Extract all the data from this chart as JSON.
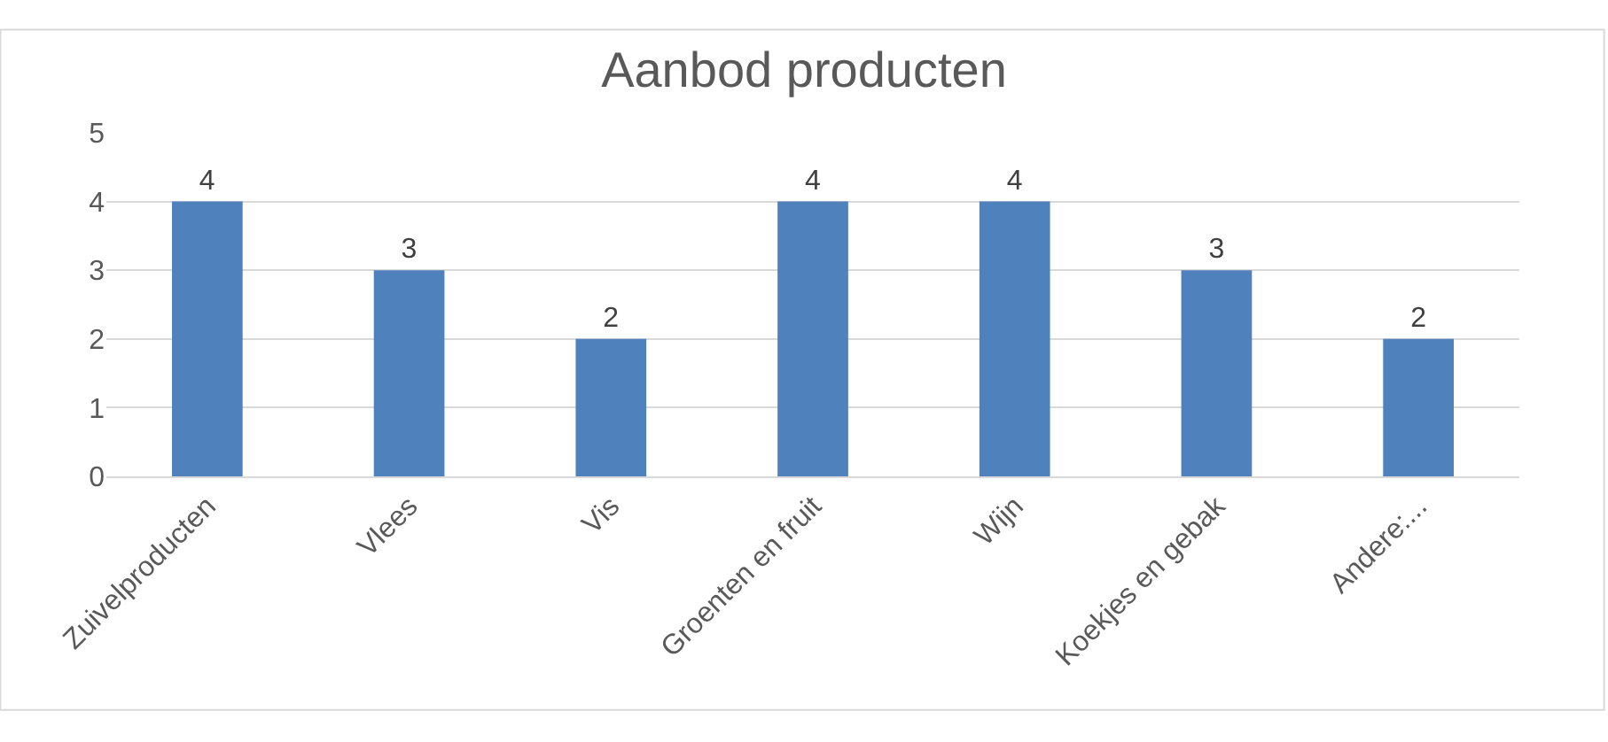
{
  "chart_data": {
    "type": "bar",
    "title": "Aanbod producten",
    "categories": [
      "Zuivelproducten",
      "Vlees",
      "Vis",
      "Groenten en fruit",
      "Wijn",
      "Koekjes en gebak",
      "Andere:..."
    ],
    "values": [
      4,
      3,
      2,
      4,
      4,
      3,
      2
    ],
    "color": "#4f81bd",
    "ylim": [
      0,
      5
    ],
    "yticks": [
      0,
      1,
      2,
      3,
      4,
      5
    ],
    "grid": "y",
    "data_labels": true
  }
}
